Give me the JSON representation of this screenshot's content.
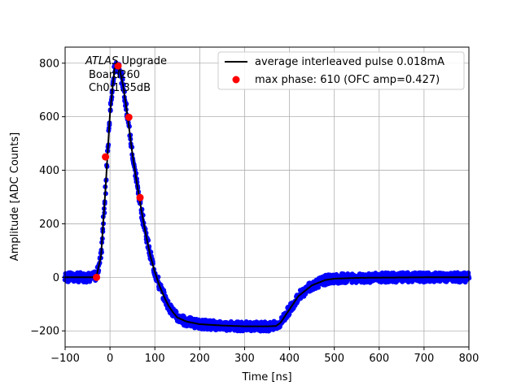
{
  "chart_data": {
    "type": "scatter",
    "xlabel": "Time [ns]",
    "ylabel": "Amplitude [ADC Counts]",
    "xlim": [
      -100,
      800
    ],
    "ylim": [
      -260,
      860
    ],
    "xticks": [
      -100,
      0,
      100,
      200,
      300,
      400,
      500,
      600,
      700,
      800
    ],
    "yticks": [
      -200,
      0,
      200,
      400,
      600,
      800
    ],
    "grid": true,
    "legend_position": "top-right",
    "annotation": {
      "line1_italic": "ATLAS",
      "line1_rest": " Upgrade",
      "line2": "Board260",
      "line3": "Ch0:1.35dB"
    },
    "series": [
      {
        "name": "average interleaved pulse 0.018mA",
        "kind": "line",
        "color": "#000000",
        "x": [
          -100,
          -40,
          -30,
          -20,
          -10,
          0,
          10,
          20,
          30,
          40,
          50,
          60,
          70,
          80,
          90,
          100,
          110,
          120,
          130,
          140,
          150,
          170,
          200,
          250,
          300,
          350,
          370,
          380,
          400,
          420,
          450,
          480,
          500,
          550,
          600,
          700,
          800
        ],
        "y": [
          0,
          0,
          5,
          80,
          330,
          610,
          780,
          790,
          710,
          590,
          460,
          350,
          250,
          160,
          80,
          20,
          -30,
          -70,
          -105,
          -130,
          -150,
          -165,
          -175,
          -180,
          -183,
          -183,
          -182,
          -170,
          -120,
          -70,
          -30,
          -10,
          -5,
          -2,
          -1,
          0,
          0
        ]
      },
      {
        "name": "max phase: 610 (OFC amp=0.427)",
        "kind": "markers",
        "color": "#ff0000",
        "x": [
          -30,
          -10,
          18,
          42,
          67
        ],
        "y": [
          0,
          450,
          790,
          598,
          298
        ]
      },
      {
        "name": "",
        "kind": "scatter-band",
        "color": "#0000ff",
        "spread": 18,
        "x": [
          -100,
          -40,
          -30,
          -20,
          -10,
          0,
          10,
          20,
          30,
          40,
          50,
          60,
          70,
          80,
          90,
          100,
          110,
          120,
          130,
          140,
          150,
          170,
          200,
          250,
          300,
          350,
          370,
          380,
          400,
          420,
          450,
          480,
          500,
          550,
          600,
          700,
          800
        ],
        "y": [
          0,
          0,
          5,
          80,
          330,
          610,
          780,
          790,
          710,
          590,
          460,
          350,
          250,
          160,
          80,
          20,
          -30,
          -70,
          -105,
          -130,
          -150,
          -165,
          -175,
          -180,
          -183,
          -183,
          -182,
          -170,
          -120,
          -70,
          -30,
          -10,
          -5,
          -2,
          -1,
          0,
          0
        ]
      }
    ]
  }
}
